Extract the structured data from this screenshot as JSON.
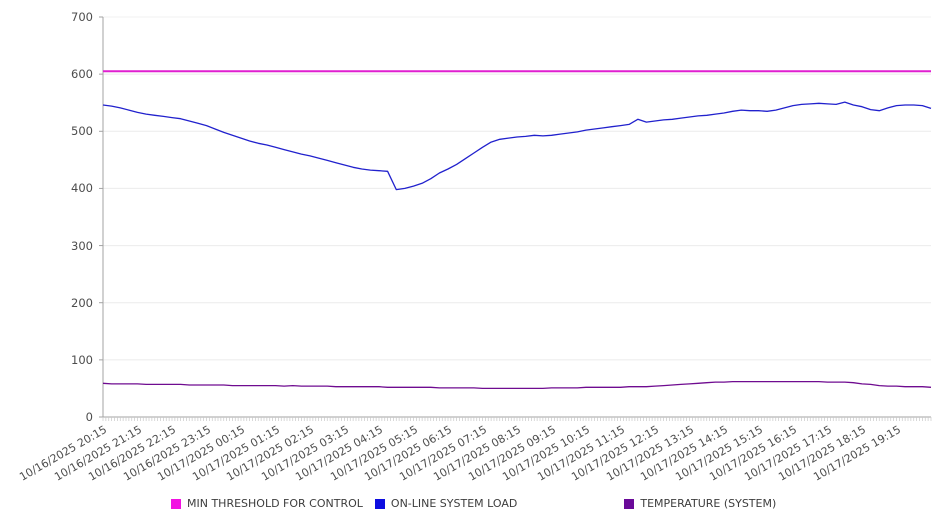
{
  "chart_data": {
    "type": "line",
    "title": "",
    "xlabel": "",
    "ylabel": "",
    "ylim": [
      0,
      700
    ],
    "y_ticks": [
      0,
      100,
      200,
      300,
      400,
      500,
      600,
      700
    ],
    "grid": "horizontal",
    "legend_position": "bottom",
    "x_interval_minutes": 15,
    "x_minor_tick_minutes": 5,
    "x_total_minutes": 1440,
    "x_tick_labels": [
      "10/16/2025 20:15",
      "10/16/2025 21:15",
      "10/16/2025 22:15",
      "10/16/2025 23:15",
      "10/17/2025 00:15",
      "10/17/2025 01:15",
      "10/17/2025 02:15",
      "10/17/2025 03:15",
      "10/17/2025 04:15",
      "10/17/2025 05:15",
      "10/17/2025 06:15",
      "10/17/2025 07:15",
      "10/17/2025 08:15",
      "10/17/2025 09:15",
      "10/17/2025 10:15",
      "10/17/2025 11:15",
      "10/17/2025 12:15",
      "10/17/2025 13:15",
      "10/17/2025 14:15",
      "10/17/2025 15:15",
      "10/17/2025 16:15",
      "10/17/2025 17:15",
      "10/17/2025 18:15",
      "10/17/2025 19:15"
    ],
    "series": [
      {
        "name": "MIN THRESHOLD FOR CONTROL",
        "color": "#e01fd0",
        "style": "constant",
        "value": 605,
        "line_width": 2
      },
      {
        "name": "ON-LINE SYSTEM LOAD",
        "color": "#2121cd",
        "style": "line",
        "line_width": 1.3,
        "values": [
          546,
          544,
          541,
          537,
          533,
          530,
          528,
          526,
          524,
          522,
          518,
          514,
          510,
          504,
          498,
          493,
          488,
          483,
          479,
          476,
          472,
          468,
          464,
          460,
          457,
          453,
          449,
          445,
          441,
          437,
          434,
          432,
          431,
          430,
          398,
          400,
          404,
          409,
          417,
          427,
          434,
          442,
          452,
          462,
          472,
          481,
          486,
          488,
          490,
          491,
          493,
          492,
          493,
          495,
          497,
          499,
          502,
          504,
          506,
          508,
          510,
          512,
          521,
          516,
          518,
          520,
          521,
          523,
          525,
          527,
          528,
          530,
          532,
          535,
          537,
          536,
          536,
          535,
          537,
          541,
          545,
          547,
          548,
          549,
          548,
          547,
          551,
          546,
          543,
          538,
          536,
          541,
          545,
          546,
          546,
          545,
          540
        ]
      },
      {
        "name": "TEMPERATURE (SYSTEM)",
        "color": "#6f0b90",
        "style": "line",
        "line_width": 1.3,
        "values": [
          59,
          58,
          58,
          58,
          58,
          57,
          57,
          57,
          57,
          57,
          56,
          56,
          56,
          56,
          56,
          55,
          55,
          55,
          55,
          55,
          55,
          54,
          55,
          54,
          54,
          54,
          54,
          53,
          53,
          53,
          53,
          53,
          53,
          52,
          52,
          52,
          52,
          52,
          52,
          51,
          51,
          51,
          51,
          51,
          50,
          50,
          50,
          50,
          50,
          50,
          50,
          50,
          51,
          51,
          51,
          51,
          52,
          52,
          52,
          52,
          52,
          53,
          53,
          53,
          54,
          55,
          56,
          57,
          58,
          59,
          60,
          61,
          61,
          62,
          62,
          62,
          62,
          62,
          62,
          62,
          62,
          62,
          62,
          62,
          61,
          61,
          61,
          60,
          58,
          57,
          55,
          54,
          54,
          53,
          53,
          53,
          52
        ]
      }
    ],
    "colors": {
      "grid": "#ebebeb",
      "axis": "#a3a3a3",
      "minor_tick": "#c8c8c8",
      "tick_text": "#4d4d4d"
    }
  },
  "legend": {
    "items": [
      {
        "label": "MIN THRESHOLD FOR CONTROL",
        "color": "#f211e2"
      },
      {
        "label": "ON-LINE SYSTEM LOAD",
        "color": "#0d0de0"
      },
      {
        "label": "TEMPERATURE (SYSTEM)",
        "color": "#6a0a99"
      }
    ]
  }
}
